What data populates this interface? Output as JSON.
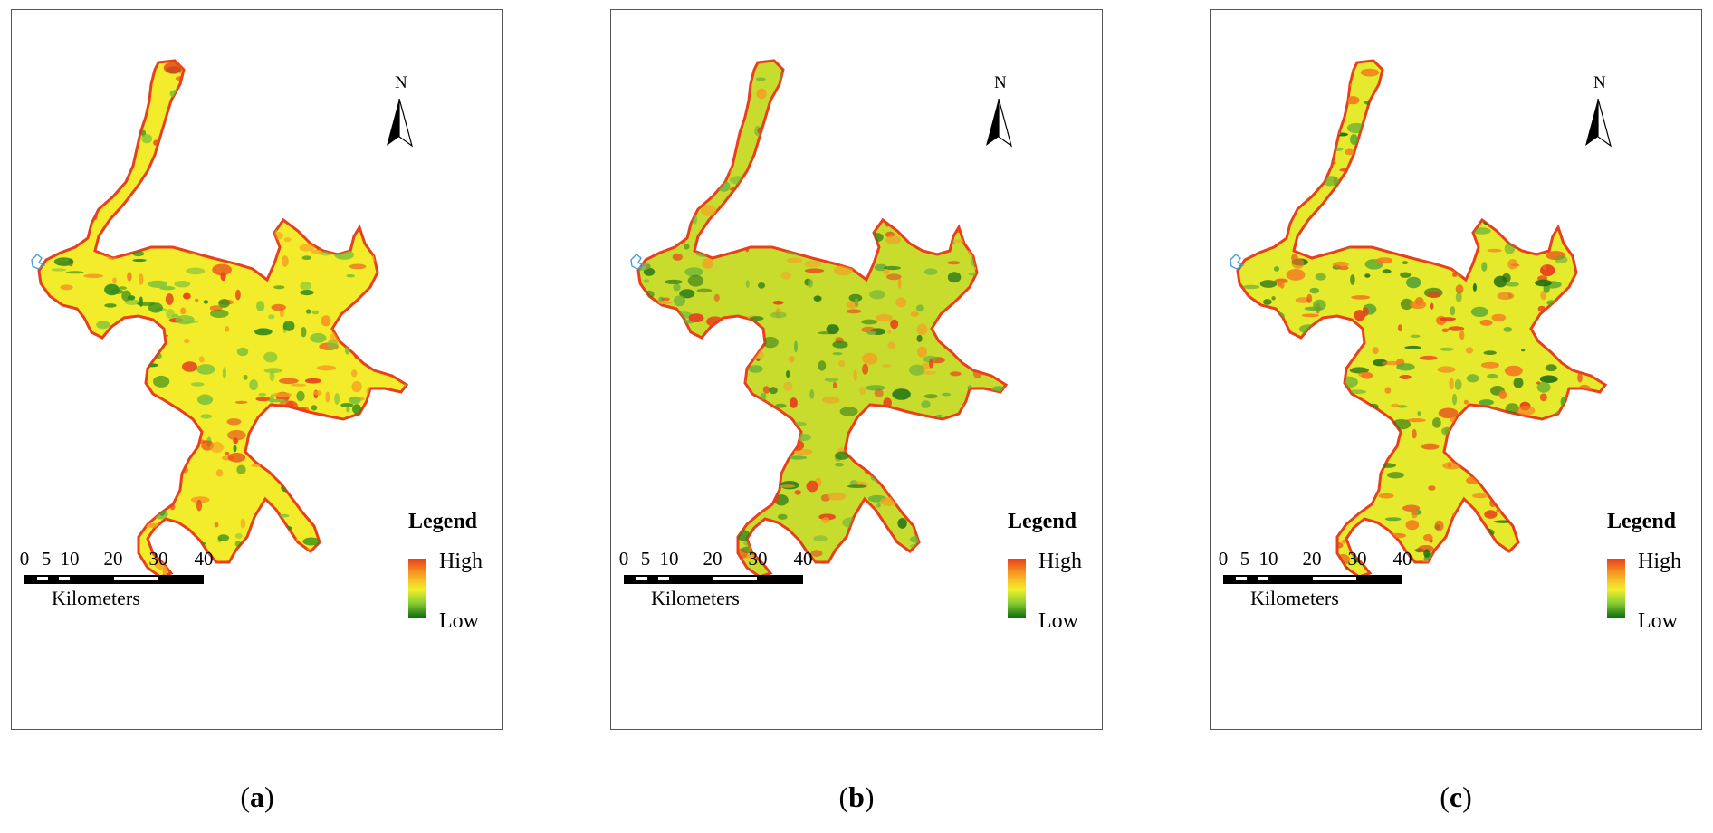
{
  "panels": [
    {
      "caption_letter": "a",
      "north_label": "N",
      "legend_title": "Legend",
      "legend_high": "High",
      "legend_low": "Low",
      "scale_ticks": [
        "0",
        "5",
        "10",
        "20",
        "30",
        "40"
      ],
      "scale_unit": "Kilometers"
    },
    {
      "caption_letter": "b",
      "north_label": "N",
      "legend_title": "Legend",
      "legend_high": "High",
      "legend_low": "Low",
      "scale_ticks": [
        "0",
        "5",
        "10",
        "20",
        "30",
        "40"
      ],
      "scale_unit": "Kilometers"
    },
    {
      "caption_letter": "c",
      "north_label": "N",
      "legend_title": "Legend",
      "legend_high": "High",
      "legend_low": "Low",
      "scale_ticks": [
        "0",
        "5",
        "10",
        "20",
        "30",
        "40"
      ],
      "scale_unit": "Kilometers"
    }
  ],
  "colors": {
    "high": "#e8401c",
    "mid": "#f3ef2a",
    "low": "#0f6e12",
    "water_marker": "#4a9fd8"
  },
  "caption_open": "(",
  "caption_close": ")"
}
